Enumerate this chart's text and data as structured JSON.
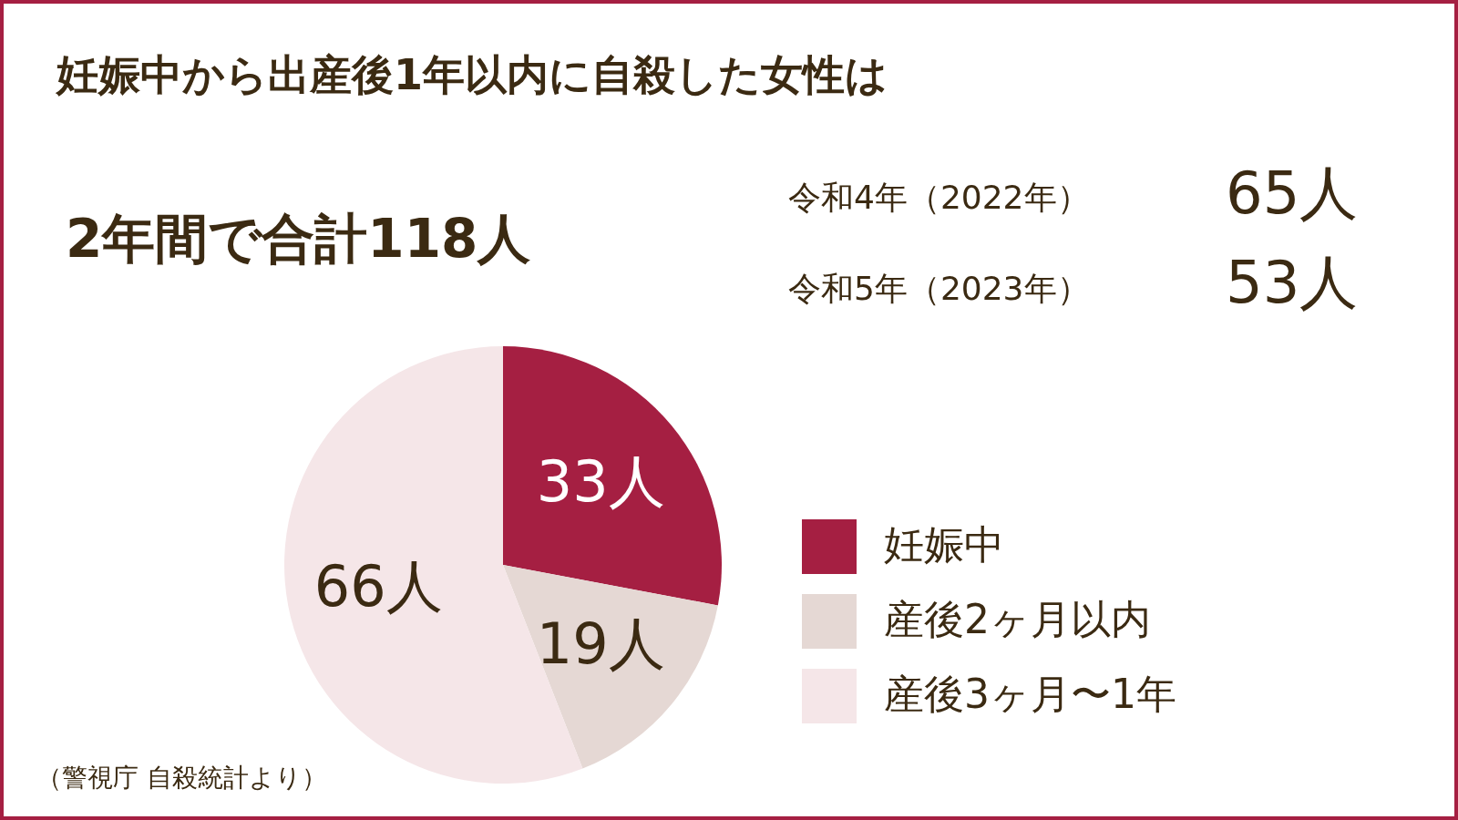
{
  "chart_data": {
    "type": "pie",
    "title": "妊娠中から出産後1年以内に自殺した女性は",
    "subtitle": "2年間で合計118人",
    "categories": [
      "妊娠中",
      "産後2ヶ月以内",
      "産後3ヶ月〜1年"
    ],
    "values": [
      33,
      19,
      66
    ],
    "value_labels": [
      "33人",
      "19人",
      "66人"
    ],
    "colors": [
      "#a51f42",
      "#e5d8d4",
      "#f5e6e8"
    ],
    "legend": "right",
    "annotations": [
      "令和4年（2022年）",
      "65人",
      "令和5年（2023年）",
      "53人",
      "（警視庁 自殺統計より）"
    ]
  }
}
